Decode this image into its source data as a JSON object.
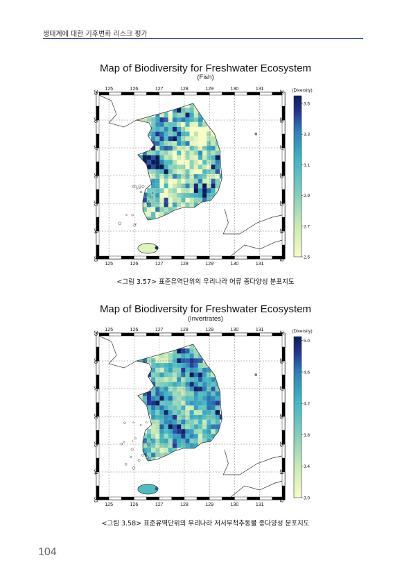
{
  "header": {
    "title": "생태계에 대한 기후변화 리스크 평가"
  },
  "page_number": "104",
  "maps": [
    {
      "title": "Map of Biodiversity for Freshwater Ecosystem",
      "subtitle": "(Fish)",
      "caption": "<그림 3.57> 표준유역단위의 우리나라 어류 종다양성 분포지도",
      "lon_ticks": [
        "125",
        "126",
        "127",
        "128",
        "129",
        "130",
        "131"
      ],
      "lat_ticks": [
        "39",
        "38",
        "37",
        "36",
        "35",
        "34",
        "33"
      ],
      "colorbar": {
        "label": "(Diversity)",
        "ticks": [
          "3.5",
          "3.3",
          "3.1",
          "2.9",
          "2.7",
          "2.5"
        ],
        "min": 2.5,
        "max": 3.55
      }
    },
    {
      "title": "Map of Biodiversity for Freshwater Ecosystem",
      "subtitle": "(Invertrates)",
      "caption": "<그림 3.58> 표준유역단위의 우리나라 저서무척추동물 종다양성 분포지도",
      "lon_ticks": [
        "125",
        "126",
        "127",
        "128",
        "129",
        "130",
        "131"
      ],
      "lat_ticks": [
        "39",
        "38",
        "37",
        "36",
        "35",
        "34",
        "33"
      ],
      "colorbar": {
        "label": "(Diversity)",
        "ticks": [
          "5.0",
          "4.6",
          "4.2",
          "3.8",
          "3.4",
          "3.0"
        ],
        "min": 3.0,
        "max": 5.05
      }
    }
  ],
  "colors": {
    "rule": "#2f46a8",
    "low": "#f7fcc4",
    "mid": "#41b6c4",
    "high": "#081d58"
  }
}
